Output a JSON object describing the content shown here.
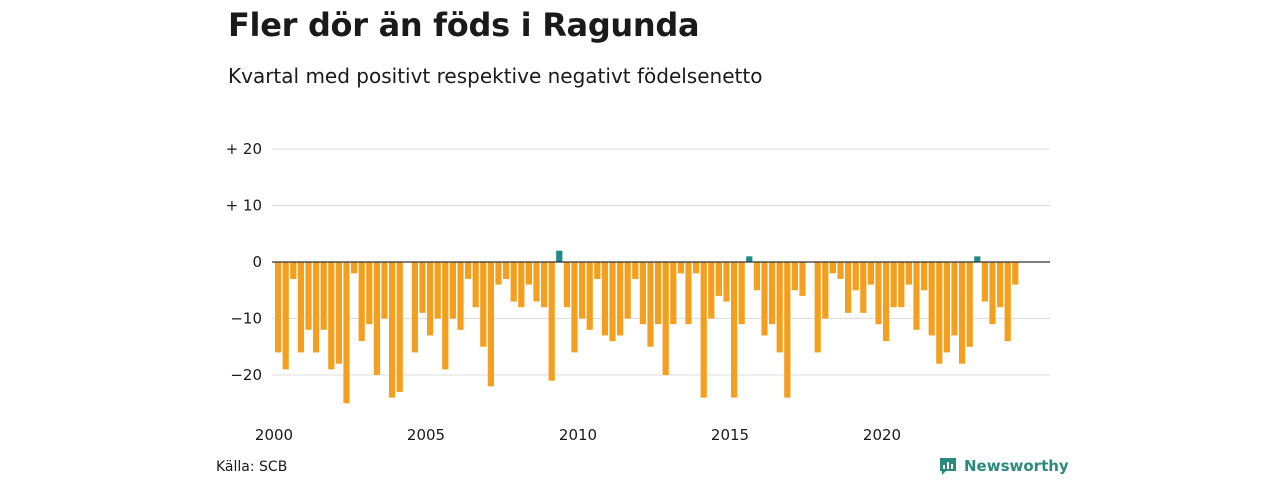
{
  "title": "Fler dör än föds i Ragunda",
  "subtitle": "Kvartal med positivt respektive negativt födelsenetto",
  "source": "Källa: SCB",
  "brand": {
    "name": "Newsworthy",
    "icon": "newsworthy-logo-icon",
    "color": "#2b8a7e"
  },
  "colors": {
    "negative": "#f59f1e",
    "positive": "#1f8c84",
    "grid": "#dddddd",
    "zero": "#333333"
  },
  "chart_data": {
    "type": "bar",
    "title": "Fler dör än föds i Ragunda",
    "xlabel": "",
    "ylabel": "",
    "x_ticks": [
      {
        "label": "2000",
        "year": 2000
      },
      {
        "label": "2005",
        "year": 2005
      },
      {
        "label": "2010",
        "year": 2010
      },
      {
        "label": "2015",
        "year": 2015
      },
      {
        "label": "2020",
        "year": 2020
      }
    ],
    "y_ticks": [
      {
        "label": "+ 20",
        "value": 20
      },
      {
        "label": "+ 10",
        "value": 10
      },
      {
        "label": "0",
        "value": 0
      },
      {
        "label": "−10",
        "value": -10
      },
      {
        "label": "−20",
        "value": -20
      }
    ],
    "ylim": [
      -27,
      22
    ],
    "xlim": [
      "2000 Q1",
      "2024 Q3"
    ],
    "start_year": 2000,
    "grid": true,
    "legend": "none",
    "values": [
      -16,
      -19,
      -3,
      -16,
      -12,
      -16,
      -12,
      -19,
      -18,
      -25,
      -2,
      -14,
      -11,
      -20,
      -10,
      -24,
      -23,
      0,
      -16,
      -9,
      -13,
      -10,
      -19,
      -10,
      -12,
      -3,
      -8,
      -15,
      -22,
      -4,
      -3,
      -7,
      -8,
      -4,
      -7,
      -8,
      -21,
      2,
      -8,
      -16,
      -10,
      -12,
      -3,
      -13,
      -14,
      -13,
      -10,
      -3,
      -11,
      -15,
      -11,
      -20,
      -11,
      -2,
      -11,
      -2,
      -24,
      -10,
      -6,
      -7,
      -24,
      -11,
      1,
      -5,
      -13,
      -11,
      -16,
      -24,
      -5,
      -6,
      0,
      -16,
      -10,
      -2,
      -3,
      -9,
      -5,
      -9,
      -4,
      -11,
      -14,
      -8,
      -8,
      -4,
      -12,
      -5,
      -13,
      -18,
      -16,
      -13,
      -18,
      -15,
      1,
      -7,
      -11,
      -8,
      -14,
      -4
    ]
  }
}
